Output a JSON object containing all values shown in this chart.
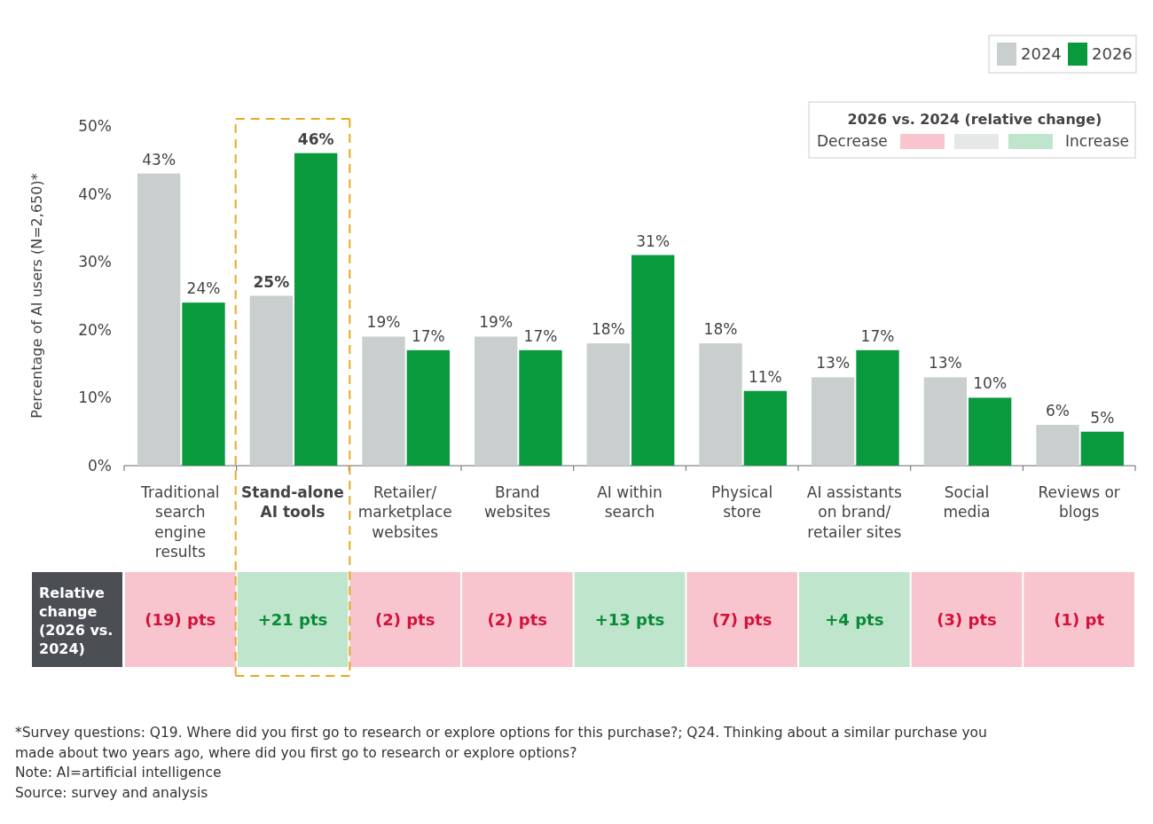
{
  "chart_data": {
    "type": "bar",
    "ylabel": "Percentage of AI users (N=2,650)*",
    "categories": [
      "Traditional\nsearch\nengine\nresults",
      "Stand-alone\nAI tools",
      "Retailer/\nmarketplace\nwebsites",
      "Brand\nwebsites",
      "AI within\nsearch",
      "Physical\nstore",
      "AI assistants\non brand/\nretailer sites",
      "Social\nmedia",
      "Reviews or\nblogs"
    ],
    "series": [
      {
        "name": "2024",
        "color": "#c8cfce",
        "values": [
          43,
          25,
          19,
          19,
          18,
          18,
          13,
          13,
          6
        ],
        "value_labels": [
          "43%",
          "25%",
          "19%",
          "19%",
          "18%",
          "18%",
          "13%",
          "13%",
          "6%"
        ]
      },
      {
        "name": "2026",
        "color": "#0a9a3e",
        "values": [
          24,
          46,
          17,
          17,
          31,
          11,
          17,
          10,
          5
        ],
        "value_labels": [
          "24%",
          "46%",
          "17%",
          "17%",
          "31%",
          "11%",
          "17%",
          "10%",
          "5%"
        ]
      }
    ],
    "ylim": [
      0,
      50
    ],
    "yticks": [
      {
        "value": 0,
        "label": "0%"
      },
      {
        "value": 10,
        "label": "10%"
      },
      {
        "value": 20,
        "label": "20%"
      },
      {
        "value": 30,
        "label": "30%"
      },
      {
        "value": 40,
        "label": "40%"
      },
      {
        "value": 50,
        "label": "50%"
      }
    ],
    "legend": "top right",
    "annotations": [
      "Relative\nchange\n(2026 vs.\n2024)",
      "2026 vs. 2024 (relative change)",
      "Decrease",
      "Increase",
      "(19) pts",
      "+21 pts",
      "(2) pts",
      "(2) pts",
      "+13 pts",
      "(7) pts",
      "+4 pts",
      "(3) pts",
      "(1) pt",
      "*Survey questions: Q19. Where did you first go to research or explore options for this purchase?; Q24. Thinking about a similar purchase you",
      "made about two years ago, where did you first go to research or explore options?",
      "Note: AI=artificial intelligence",
      "Source: survey and analysis"
    ]
  }
}
